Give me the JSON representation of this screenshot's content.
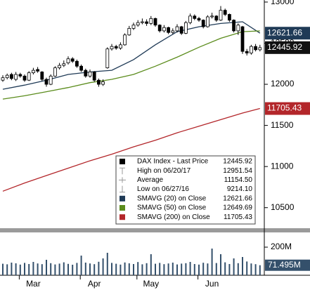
{
  "chart_data": {
    "type": "candlestick",
    "categories": [
      null,
      null,
      null,
      null,
      null,
      null,
      null,
      "Mar",
      null,
      null,
      null,
      null,
      null,
      null,
      null,
      null,
      null,
      null,
      null,
      null,
      null,
      "Apr",
      null,
      null,
      null,
      null,
      null,
      null,
      null,
      null,
      null,
      null,
      null,
      null,
      "May",
      null,
      null,
      null,
      null,
      null,
      null,
      null,
      null,
      null,
      null,
      null,
      null,
      null,
      "Jun",
      null,
      null,
      null,
      null,
      null,
      null,
      null,
      null,
      null,
      null,
      null
    ],
    "open": [
      12050,
      12080,
      12120,
      12060,
      12120,
      12100,
      12050,
      12140,
      12180,
      12150,
      12060,
      12000,
      12100,
      12200,
      12230,
      12260,
      12310,
      12280,
      12220,
      12170,
      12100,
      12150,
      12050,
      12000,
      12200,
      12430,
      12460,
      12440,
      12480,
      12600,
      12680,
      12720,
      12750,
      12760,
      12740,
      12800,
      12720,
      12650,
      12690,
      12630,
      12650,
      12700,
      12620,
      12750,
      12830,
      12800,
      12780,
      12700,
      12820,
      12830,
      12780,
      12900,
      12850,
      12780,
      12650,
      12700,
      12400,
      12380,
      12460,
      12420
    ],
    "high": [
      12110,
      12130,
      12140,
      12150,
      12140,
      12120,
      12160,
      12200,
      12210,
      12160,
      12080,
      12120,
      12220,
      12260,
      12290,
      12340,
      12330,
      12300,
      12240,
      12190,
      12180,
      12160,
      12070,
      12060,
      12450,
      12490,
      12480,
      12510,
      12620,
      12710,
      12750,
      12780,
      12800,
      12790,
      12830,
      12810,
      12730,
      12720,
      12700,
      12680,
      12730,
      12710,
      12770,
      12860,
      12850,
      12820,
      12790,
      12840,
      12870,
      12840,
      12951.54,
      12920,
      12860,
      12790,
      12740,
      12710,
      12430,
      12480,
      12490,
      12480
    ],
    "low": [
      12030,
      12060,
      12050,
      12040,
      12080,
      12030,
      12040,
      12120,
      12140,
      12040,
      11970,
      11990,
      12090,
      12180,
      12210,
      12240,
      12260,
      12200,
      12150,
      12080,
      12080,
      12030,
      11970,
      11980,
      12190,
      12410,
      12420,
      12420,
      12470,
      12590,
      12660,
      12700,
      12730,
      12710,
      12720,
      12700,
      12630,
      12630,
      12610,
      12610,
      12630,
      12600,
      12610,
      12730,
      12780,
      12760,
      12680,
      12690,
      12800,
      12760,
      12770,
      12830,
      12760,
      12630,
      12600,
      12370,
      12350,
      12360,
      12400,
      12400
    ],
    "close": [
      12080,
      12110,
      12070,
      12120,
      12100,
      12050,
      12140,
      12170,
      12160,
      12060,
      12000,
      12100,
      12200,
      12230,
      12250,
      12310,
      12280,
      12220,
      12170,
      12100,
      12150,
      12050,
      12000,
      12030,
      12430,
      12460,
      12440,
      12480,
      12600,
      12680,
      12720,
      12750,
      12760,
      12740,
      12800,
      12720,
      12650,
      12690,
      12630,
      12650,
      12700,
      12620,
      12750,
      12830,
      12800,
      12780,
      12700,
      12820,
      12830,
      12780,
      12900,
      12850,
      12780,
      12650,
      12720,
      12400,
      12380,
      12460,
      12420,
      12445.92
    ],
    "series": [
      {
        "name": "SMAVG (20) on Close",
        "color": "#1f3a56",
        "x": [
          0,
          5,
          10,
          15,
          20,
          25,
          30,
          35,
          40,
          45,
          50,
          55,
          59
        ],
        "values": [
          11940,
          11990,
          12050,
          12120,
          12150,
          12170,
          12300,
          12480,
          12640,
          12700,
          12740,
          12760,
          12621.66
        ]
      },
      {
        "name": "SMAVG (50) on Close",
        "color": "#5b8c1c",
        "x": [
          0,
          5,
          10,
          15,
          20,
          25,
          30,
          35,
          40,
          45,
          50,
          55,
          59
        ],
        "values": [
          11820,
          11860,
          11910,
          11960,
          12020,
          12060,
          12120,
          12220,
          12330,
          12450,
          12560,
          12640,
          12649.69
        ]
      },
      {
        "name": "SMAVG (200) on Close",
        "color": "#b3262a",
        "x": [
          0,
          5,
          10,
          15,
          20,
          25,
          30,
          35,
          40,
          45,
          50,
          55,
          59
        ],
        "values": [
          10700,
          10800,
          10890,
          10980,
          11070,
          11150,
          11240,
          11320,
          11410,
          11490,
          11570,
          11650,
          11705.43
        ]
      }
    ],
    "ylim": [
      10250,
      13025
    ],
    "yticks": [
      10500,
      11000,
      11500,
      12000,
      12500,
      13000
    ],
    "legend": [
      {
        "name": "DAX Index - Last Price",
        "value": "12445.92"
      },
      {
        "name": "High on 06/20/17",
        "value": "12951.54"
      },
      {
        "name": "Average",
        "value": "11154.50"
      },
      {
        "name": "Low on 06/27/16",
        "value": "9214.10"
      },
      {
        "name": "SMAVG (20) on Close",
        "value": "12621.66"
      },
      {
        "name": "SMAVG (50) on Close",
        "value": "12649.69"
      },
      {
        "name": "SMAVG (200) on Close",
        "value": "11705.43"
      }
    ],
    "volume": {
      "color": "#34506b",
      "values": [
        82,
        78,
        90,
        85,
        76,
        88,
        80,
        95,
        84,
        79,
        110,
        86,
        77,
        83,
        92,
        81,
        75,
        88,
        140,
        90,
        84,
        79,
        96,
        120,
        160,
        88,
        82,
        76,
        91,
        85,
        80,
        94,
        78,
        86,
        150,
        82,
        88,
        79,
        84,
        90,
        77,
        83,
        86,
        95,
        80,
        76,
        89,
        84,
        190,
        87,
        150,
        92,
        80,
        120,
        86,
        130,
        98,
        84,
        79,
        71.495
      ],
      "ylim": [
        0,
        290
      ],
      "yticks": [
        {
          "value": 200,
          "label": "200M"
        }
      ],
      "last_value_label": "71.495M"
    }
  }
}
